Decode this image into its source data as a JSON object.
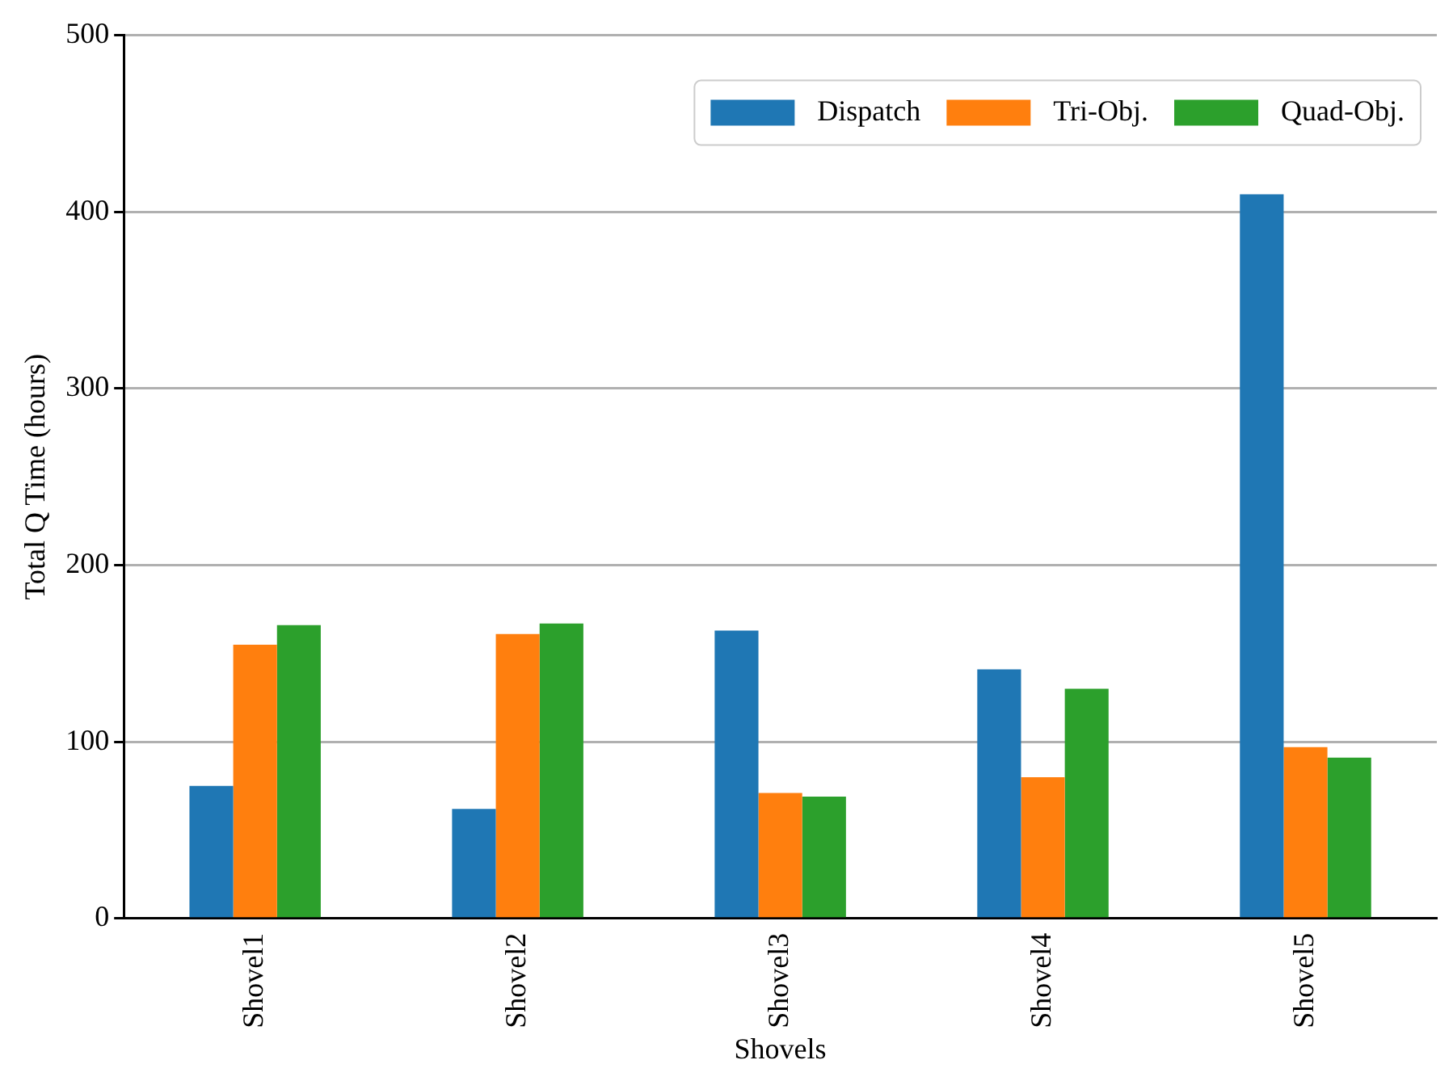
{
  "chart_data": {
    "type": "bar",
    "xlabel": "Shovels",
    "ylabel": "Total Q Time (hours)",
    "categories": [
      "Shovel1",
      "Shovel2",
      "Shovel3",
      "Shovel4",
      "Shovel5"
    ],
    "series": [
      {
        "name": "Dispatch",
        "color": "#1f77b4",
        "values": [
          75,
          62,
          163,
          141,
          410
        ]
      },
      {
        "name": "Tri-Obj.",
        "color": "#ff7f0e",
        "values": [
          155,
          161,
          71,
          80,
          97
        ]
      },
      {
        "name": "Quad-Obj.",
        "color": "#2ca02c",
        "values": [
          166,
          167,
          69,
          130,
          91
        ]
      }
    ],
    "ylim": [
      0,
      500
    ],
    "yticks": [
      0,
      100,
      200,
      300,
      400,
      500
    ],
    "grid": "y",
    "legend": "top right"
  }
}
